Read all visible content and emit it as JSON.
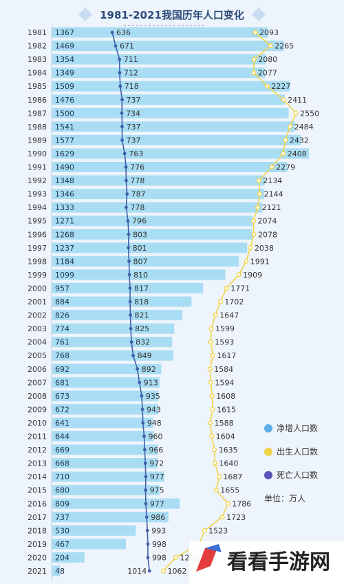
{
  "chart_data": {
    "type": "bar",
    "title": "1981-2021我国历年人口变化",
    "unit_label": "单位：万人",
    "categories": [
      "1981",
      "1982",
      "1983",
      "1984",
      "1985",
      "1986",
      "1987",
      "1988",
      "1989",
      "1990",
      "1991",
      "1992",
      "1993",
      "1994",
      "1995",
      "1996",
      "1997",
      "1998",
      "1999",
      "2000",
      "2001",
      "2002",
      "2003",
      "2004",
      "2005",
      "2006",
      "2007",
      "2008",
      "2009",
      "2010",
      "2011",
      "2012",
      "2013",
      "2014",
      "2015",
      "2016",
      "2017",
      "2018",
      "2019",
      "2020",
      "2021"
    ],
    "series": [
      {
        "name": "净增人口数",
        "type": "bar",
        "color": "#a9ddf3",
        "values": [
          1367,
          1469,
          1354,
          1349,
          1509,
          1476,
          1500,
          1541,
          1577,
          1629,
          1490,
          1348,
          1346,
          1333,
          1271,
          1268,
          1237,
          1184,
          1099,
          957,
          884,
          826,
          774,
          761,
          768,
          692,
          681,
          673,
          672,
          641,
          644,
          669,
          668,
          710,
          680,
          809,
          737,
          530,
          467,
          204,
          48
        ]
      },
      {
        "name": "出生人口数",
        "type": "line",
        "color": "#f2d44a",
        "values": [
          2093,
          2265,
          2080,
          2077,
          2227,
          2411,
          2550,
          2484,
          2432,
          2408,
          2279,
          2134,
          2144,
          2121,
          2074,
          2078,
          2038,
          1991,
          1909,
          1771,
          1702,
          1647,
          1599,
          1593,
          1617,
          1584,
          1594,
          1608,
          1615,
          1588,
          1604,
          1635,
          1640,
          1687,
          1655,
          1786,
          1723,
          1523,
          1465,
          1200,
          1062
        ],
        "labels": [
          "2093",
          "2265",
          "2080",
          "2077",
          "2227",
          "2411",
          "2550",
          "2484",
          "2432",
          "2408",
          "2279",
          "2134",
          "2144",
          "2121",
          "2074",
          "2078",
          "2038",
          "1991",
          "1909",
          "1771",
          "1702",
          "1647",
          "1599",
          "1593",
          "1617",
          "1584",
          "1594",
          "1608",
          "1615",
          "1588",
          "1604",
          "1635",
          "1640",
          "1687",
          "1655",
          "1786",
          "1723",
          "1523",
          "",
          "1200",
          "1062"
        ]
      },
      {
        "name": "死亡人口数",
        "type": "line",
        "color": "#3f5fa8",
        "values": [
          636,
          671,
          711,
          712,
          718,
          737,
          734,
          737,
          737,
          763,
          776,
          778,
          787,
          778,
          796,
          803,
          801,
          807,
          810,
          817,
          818,
          821,
          825,
          832,
          849,
          892,
          913,
          935,
          943,
          948,
          960,
          966,
          972,
          977,
          975,
          977,
          986,
          993,
          998,
          998,
          1014
        ]
      }
    ],
    "legend": [
      {
        "label": "净增人口数",
        "color": "#5aaee5"
      },
      {
        "label": "出生人口数",
        "color": "#f2d44a"
      },
      {
        "label": "死亡人口数",
        "color": "#5b52b8"
      }
    ],
    "legend_position": "right",
    "watermark": "看看手游网"
  }
}
